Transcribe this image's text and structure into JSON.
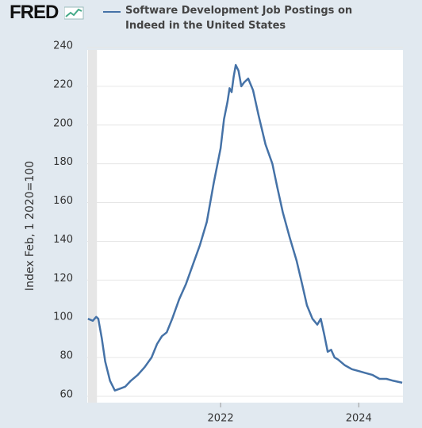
{
  "header": {
    "logo": "FRED"
  },
  "chart_data": {
    "type": "line",
    "ylabel": "Index Feb, 1 2020=100",
    "x": [
      2020.08,
      2020.15,
      2020.2,
      2020.23,
      2020.28,
      2020.33,
      2020.4,
      2020.47,
      2020.55,
      2020.62,
      2020.7,
      2020.8,
      2020.9,
      2021.0,
      2021.08,
      2021.15,
      2021.22,
      2021.3,
      2021.4,
      2021.5,
      2021.6,
      2021.7,
      2021.8,
      2021.9,
      2022.0,
      2022.05,
      2022.1,
      2022.13,
      2022.16,
      2022.19,
      2022.22,
      2022.26,
      2022.3,
      2022.34,
      2022.4,
      2022.47,
      2022.55,
      2022.65,
      2022.75,
      2022.82,
      2022.9,
      2023.0,
      2023.1,
      2023.18,
      2023.25,
      2023.33,
      2023.4,
      2023.45,
      2023.5,
      2023.55,
      2023.6,
      2023.65,
      2023.7,
      2023.8,
      2023.9,
      2024.0,
      2024.1,
      2024.2,
      2024.3,
      2024.4,
      2024.5,
      2024.63
    ],
    "series": [
      {
        "name": "Software Development Job Postings on Indeed in the United States",
        "color": "#4572a7",
        "values": [
          100,
          99,
          101,
          100,
          90,
          78,
          68,
          63,
          64,
          65,
          68,
          71,
          75,
          80,
          87,
          91,
          93,
          100,
          110,
          118,
          128,
          138,
          150,
          170,
          188,
          203,
          212,
          219,
          217,
          225,
          231,
          228,
          220,
          222,
          224,
          218,
          205,
          190,
          180,
          168,
          155,
          142,
          130,
          118,
          107,
          100,
          97,
          100,
          92,
          83,
          84,
          80,
          79,
          76,
          74,
          73,
          72,
          71,
          69,
          69,
          68,
          67
        ]
      }
    ],
    "recession": [
      2020.08,
      2020.21
    ],
    "xlim": [
      2020.07,
      2024.64
    ],
    "xticks": [
      2022,
      2024
    ],
    "ylim": [
      60,
      240
    ],
    "yticks": [
      60,
      80,
      100,
      120,
      140,
      160,
      180,
      200,
      220,
      240
    ],
    "grid": true
  }
}
